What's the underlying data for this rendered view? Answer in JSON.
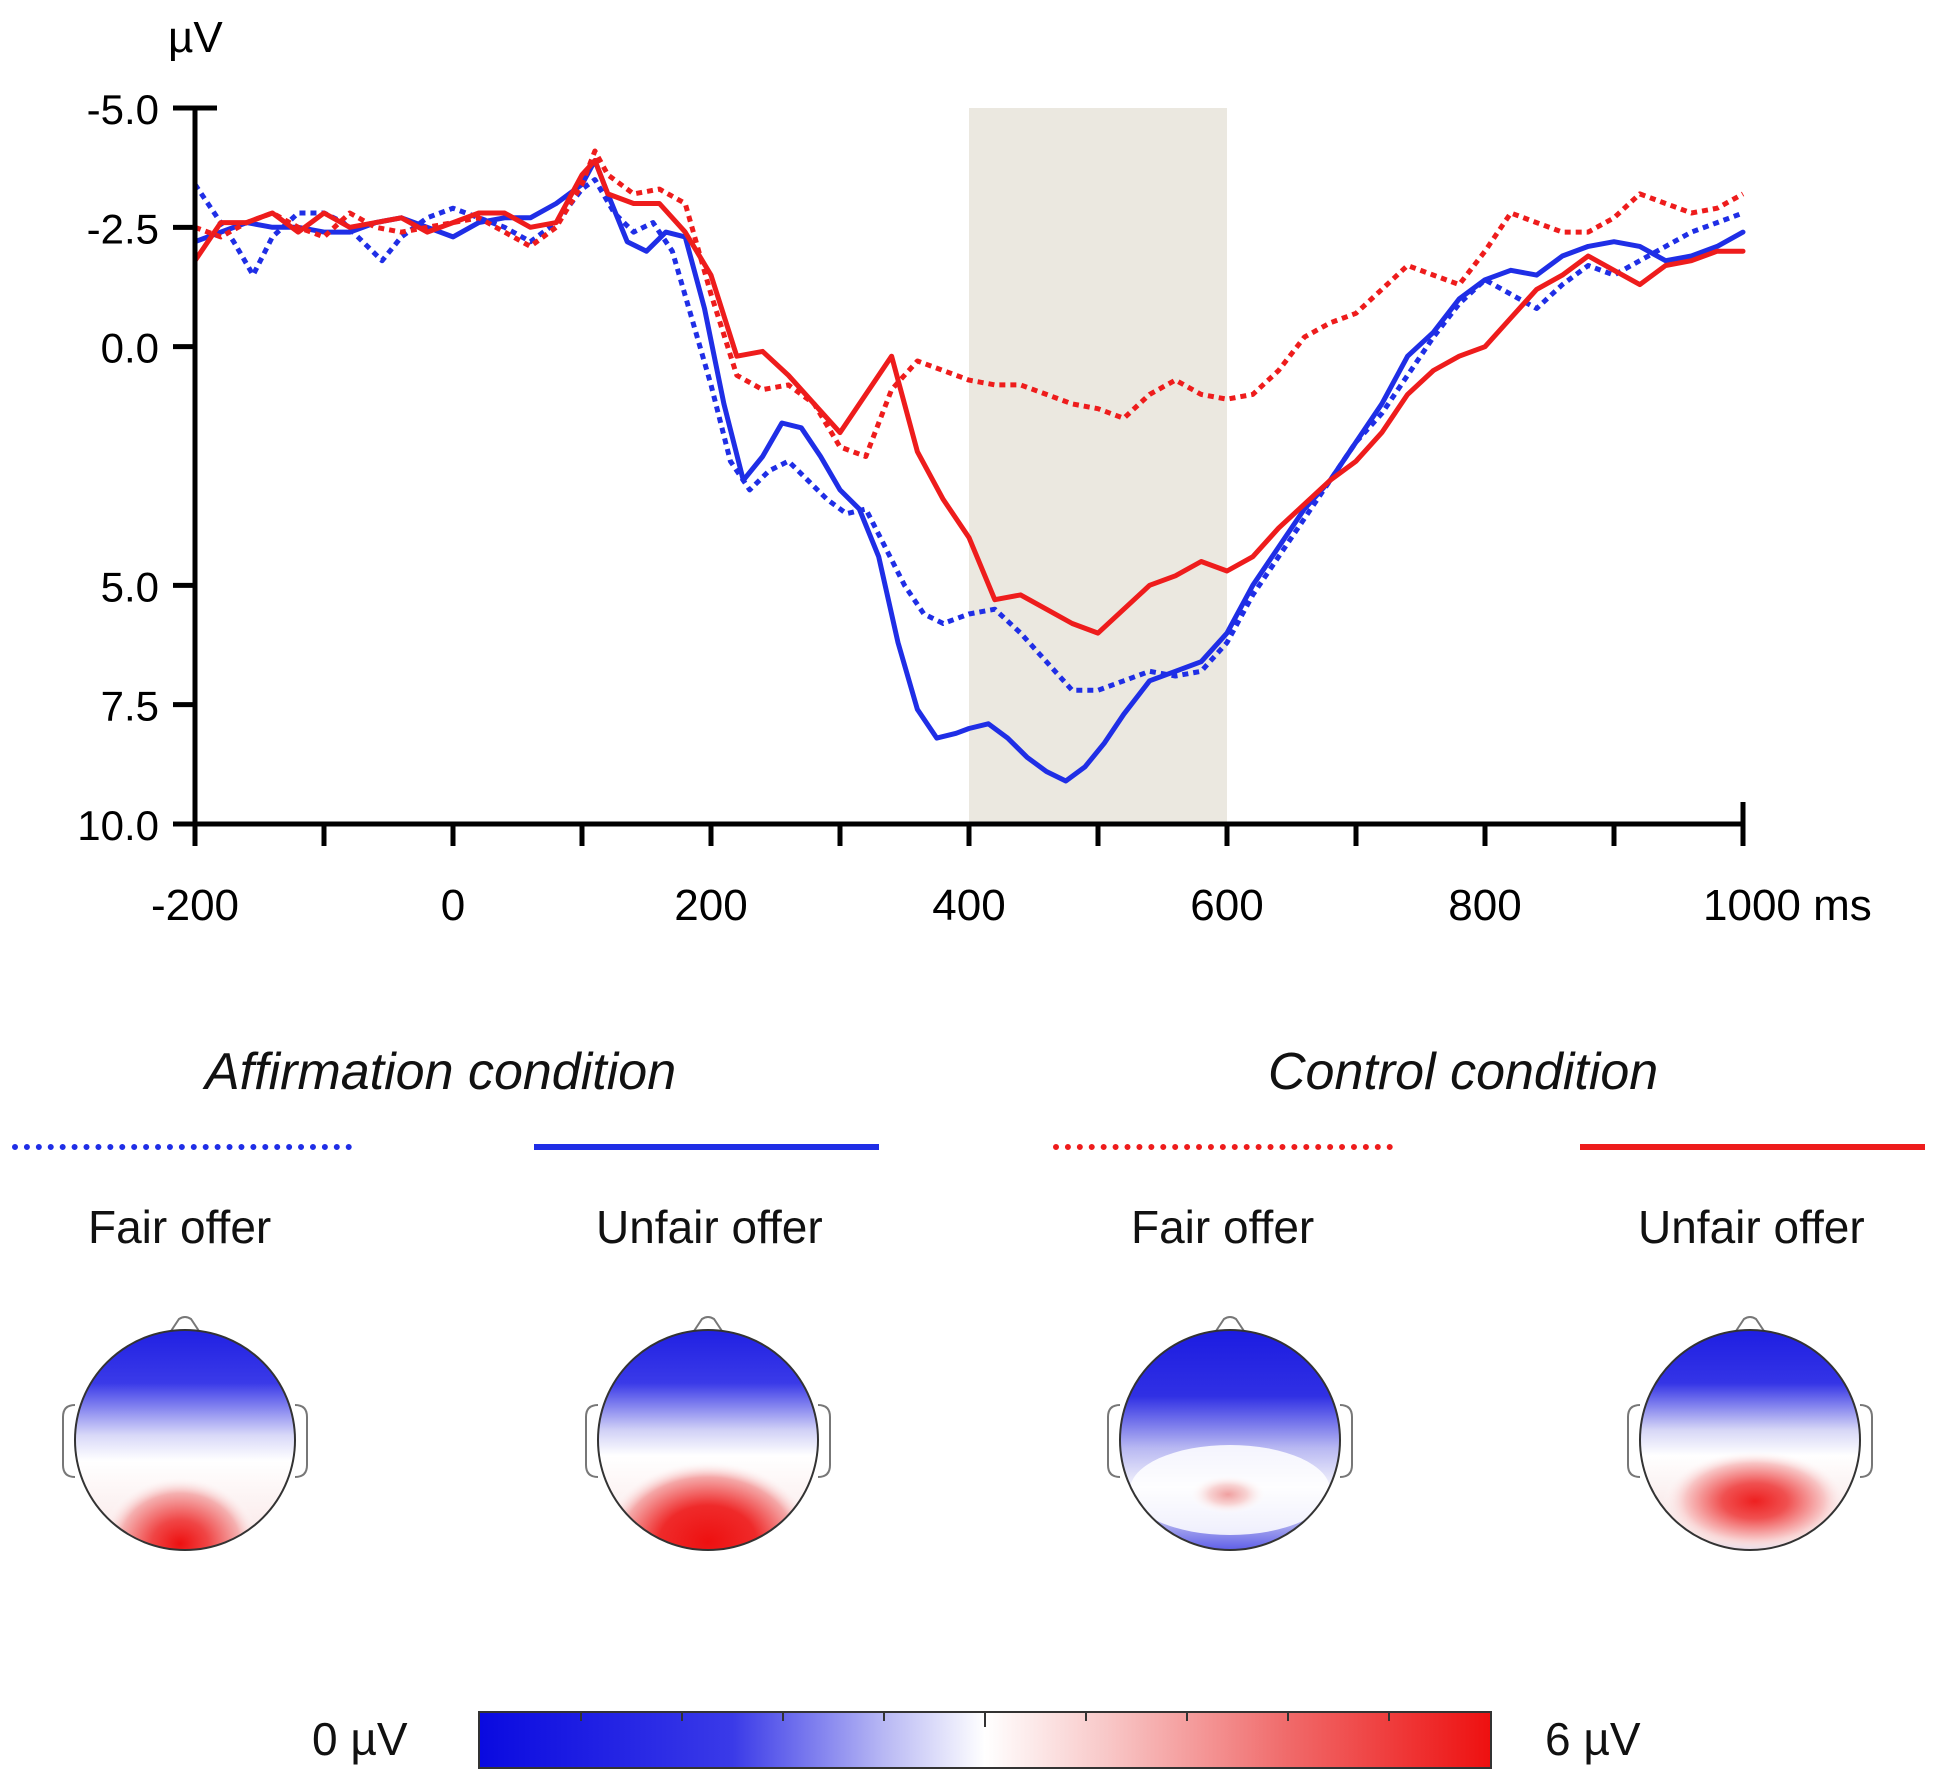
{
  "colors": {
    "blue": "#1f2ee6",
    "red": "#ee1c1c",
    "shade": "#ebe8e0"
  },
  "chart_data": {
    "type": "line",
    "unit_label": "µV",
    "x_unit": "ms",
    "xlim": [
      -200,
      1000
    ],
    "ylim": [
      -5,
      10
    ],
    "y_inverted": true,
    "x_ticks": [
      -200,
      0,
      200,
      400,
      600,
      800,
      1000
    ],
    "x_tick_labels": [
      "-200",
      "0",
      "200",
      "400",
      "600",
      "800",
      "1000 ms"
    ],
    "y_ticks": [
      -5,
      -2.5,
      0,
      5,
      7.5,
      10
    ],
    "y_tick_labels": [
      "-5.0",
      "-2.5",
      "0.0",
      "5.0",
      "7.5",
      "10.0"
    ],
    "highlight_window": [
      400,
      600
    ],
    "series": [
      {
        "name": "Affirmation condition - Fair offer",
        "color": "#1f2ee6",
        "dash": true,
        "x": [
          -200,
          -185,
          -170,
          -155,
          -140,
          -120,
          -100,
          -85,
          -70,
          -55,
          -40,
          -20,
          0,
          20,
          40,
          60,
          80,
          100,
          110,
          125,
          140,
          155,
          170,
          185,
          200,
          215,
          230,
          245,
          260,
          275,
          290,
          305,
          320,
          335,
          350,
          365,
          380,
          400,
          420,
          440,
          460,
          480,
          500,
          520,
          540,
          560,
          580,
          600,
          620,
          640,
          660,
          680,
          700,
          720,
          740,
          760,
          780,
          800,
          820,
          840,
          860,
          880,
          900,
          920,
          940,
          960,
          980,
          1000
        ],
        "y": [
          -3.4,
          -2.8,
          -2.2,
          -1.5,
          -2.3,
          -2.8,
          -2.8,
          -2.6,
          -2.2,
          -1.8,
          -2.3,
          -2.7,
          -2.9,
          -2.7,
          -2.5,
          -2.2,
          -2.6,
          -3.3,
          -3.5,
          -2.8,
          -2.4,
          -2.6,
          -2.0,
          -0.6,
          0.8,
          2.4,
          3.0,
          2.6,
          2.4,
          2.8,
          3.2,
          3.5,
          3.4,
          4.2,
          5.0,
          5.6,
          5.8,
          5.6,
          5.5,
          6.0,
          6.6,
          7.2,
          7.2,
          7.0,
          6.8,
          6.9,
          6.8,
          6.2,
          5.2,
          4.4,
          3.6,
          2.8,
          2.0,
          1.4,
          0.6,
          -0.2,
          -0.9,
          -1.4,
          -1.1,
          -0.8,
          -1.3,
          -1.7,
          -1.5,
          -1.8,
          -2.1,
          -2.4,
          -2.6,
          -2.8
        ]
      },
      {
        "name": "Affirmation condition - Unfair offer",
        "color": "#1f2ee6",
        "dash": false,
        "x": [
          -200,
          -180,
          -160,
          -140,
          -120,
          -100,
          -80,
          -60,
          -40,
          -20,
          0,
          20,
          40,
          60,
          80,
          100,
          110,
          120,
          135,
          150,
          165,
          180,
          195,
          210,
          225,
          240,
          255,
          270,
          285,
          300,
          315,
          330,
          345,
          360,
          375,
          390,
          400,
          415,
          430,
          445,
          460,
          475,
          490,
          505,
          520,
          540,
          560,
          580,
          600,
          620,
          640,
          660,
          680,
          700,
          720,
          740,
          760,
          780,
          800,
          820,
          840,
          860,
          880,
          900,
          920,
          940,
          960,
          980,
          1000
        ],
        "y": [
          -2.2,
          -2.4,
          -2.6,
          -2.5,
          -2.5,
          -2.4,
          -2.4,
          -2.6,
          -2.7,
          -2.5,
          -2.3,
          -2.6,
          -2.7,
          -2.7,
          -3.0,
          -3.4,
          -3.9,
          -3.2,
          -2.2,
          -2.0,
          -2.4,
          -2.3,
          -0.8,
          1.2,
          2.8,
          2.3,
          1.6,
          1.7,
          2.3,
          3.0,
          3.4,
          4.4,
          6.2,
          7.6,
          8.2,
          8.1,
          8.0,
          7.9,
          8.2,
          8.6,
          8.9,
          9.1,
          8.8,
          8.3,
          7.7,
          7.0,
          6.8,
          6.6,
          6.0,
          5.0,
          4.2,
          3.4,
          2.8,
          2.0,
          1.2,
          0.2,
          -0.3,
          -1.0,
          -1.4,
          -1.6,
          -1.5,
          -1.9,
          -2.1,
          -2.2,
          -2.1,
          -1.8,
          -1.9,
          -2.1,
          -2.4
        ]
      },
      {
        "name": "Control condition - Fair offer",
        "color": "#ee1c1c",
        "dash": true,
        "x": [
          -200,
          -180,
          -160,
          -140,
          -120,
          -100,
          -80,
          -60,
          -40,
          -20,
          0,
          20,
          40,
          60,
          80,
          100,
          110,
          120,
          140,
          160,
          180,
          200,
          220,
          240,
          260,
          280,
          300,
          320,
          340,
          360,
          380,
          400,
          420,
          440,
          460,
          480,
          500,
          520,
          540,
          560,
          580,
          600,
          620,
          640,
          660,
          680,
          700,
          720,
          740,
          760,
          780,
          800,
          820,
          840,
          860,
          880,
          900,
          920,
          940,
          960,
          980,
          1000
        ],
        "y": [
          -2.5,
          -2.3,
          -2.6,
          -2.8,
          -2.5,
          -2.3,
          -2.8,
          -2.5,
          -2.4,
          -2.5,
          -2.6,
          -2.7,
          -2.4,
          -2.1,
          -2.5,
          -3.4,
          -4.1,
          -3.6,
          -3.2,
          -3.3,
          -3.0,
          -1.1,
          0.6,
          0.9,
          0.8,
          1.2,
          2.1,
          2.3,
          0.9,
          0.3,
          0.5,
          0.7,
          0.8,
          0.8,
          1.0,
          1.2,
          1.3,
          1.5,
          1.0,
          0.7,
          1.0,
          1.1,
          1.0,
          0.5,
          -0.2,
          -0.5,
          -0.7,
          -1.2,
          -1.7,
          -1.5,
          -1.3,
          -2.0,
          -2.8,
          -2.6,
          -2.4,
          -2.4,
          -2.7,
          -3.2,
          -3.0,
          -2.8,
          -2.9,
          -3.2
        ]
      },
      {
        "name": "Control condition - Unfair offer",
        "color": "#ee1c1c",
        "dash": false,
        "x": [
          -200,
          -180,
          -160,
          -140,
          -120,
          -100,
          -80,
          -60,
          -40,
          -20,
          0,
          20,
          40,
          60,
          80,
          100,
          110,
          120,
          140,
          160,
          180,
          200,
          220,
          240,
          260,
          280,
          300,
          320,
          340,
          360,
          380,
          400,
          420,
          440,
          460,
          480,
          500,
          520,
          540,
          560,
          580,
          600,
          620,
          640,
          660,
          680,
          700,
          720,
          740,
          760,
          780,
          800,
          820,
          840,
          860,
          880,
          900,
          920,
          940,
          960,
          980,
          1000
        ],
        "y": [
          -1.8,
          -2.6,
          -2.6,
          -2.8,
          -2.4,
          -2.8,
          -2.5,
          -2.6,
          -2.7,
          -2.4,
          -2.6,
          -2.8,
          -2.8,
          -2.5,
          -2.6,
          -3.6,
          -3.9,
          -3.2,
          -3.0,
          -3.0,
          -2.4,
          -1.5,
          0.2,
          0.1,
          0.6,
          1.2,
          1.8,
          1.0,
          0.2,
          2.2,
          3.2,
          4.0,
          5.3,
          5.2,
          5.5,
          5.8,
          6.0,
          5.5,
          5.0,
          4.8,
          4.5,
          4.7,
          4.4,
          3.8,
          3.3,
          2.8,
          2.4,
          1.8,
          1.0,
          0.5,
          0.2,
          0.0,
          -0.6,
          -1.2,
          -1.5,
          -1.9,
          -1.6,
          -1.3,
          -1.7,
          -1.8,
          -2.0,
          -2.0
        ]
      }
    ]
  },
  "legend": {
    "affirmation_title": "Affirmation condition",
    "control_title": "Control condition",
    "offers": [
      "Fair offer",
      "Unfair offer",
      "Fair offer",
      "Unfair offer"
    ]
  },
  "scale": {
    "min_label": "0 µV",
    "max_label": "6 µV"
  },
  "topomaps": [
    {
      "condition": "Affirmation",
      "offer": "Fair",
      "red_intensity": 1.0
    },
    {
      "condition": "Affirmation",
      "offer": "Unfair",
      "red_intensity": 1.0
    },
    {
      "condition": "Control",
      "offer": "Fair",
      "red_intensity": 0.3
    },
    {
      "condition": "Control",
      "offer": "Unfair",
      "red_intensity": 0.8
    }
  ]
}
